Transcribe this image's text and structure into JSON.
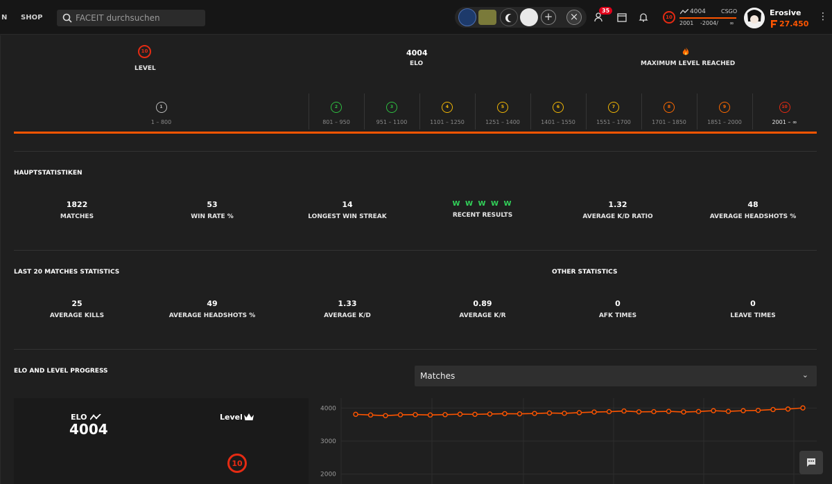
{
  "topbar": {
    "nav_cut": "N",
    "shop": "SHOP",
    "search_placeholder": "FACEIT durchsuchen",
    "notif_count": "35",
    "level": "10",
    "elo_value": "4004",
    "game": "CSGO",
    "elo_min": "2001",
    "elo_range": "-2004/",
    "elo_infinity": "∞",
    "username": "Erosive",
    "points": "27.450"
  },
  "summary": {
    "level_label": "LEVEL",
    "level_value": "10",
    "elo_value": "4004",
    "elo_label": "ELO",
    "max_label": "MAXIMUM LEVEL REACHED"
  },
  "levels": [
    {
      "n": "1",
      "range": "1 – 800",
      "color": "#bdbdbd"
    },
    {
      "n": "2",
      "range": "801 – 950",
      "color": "#2fbf42"
    },
    {
      "n": "3",
      "range": "951 – 1100",
      "color": "#2fbf42"
    },
    {
      "n": "4",
      "range": "1101 – 1250",
      "color": "#f2b705"
    },
    {
      "n": "5",
      "range": "1251 – 1400",
      "color": "#f2b705"
    },
    {
      "n": "6",
      "range": "1401 – 1550",
      "color": "#f2b705"
    },
    {
      "n": "7",
      "range": "1551 – 1700",
      "color": "#f2b705"
    },
    {
      "n": "8",
      "range": "1701 – 1850",
      "color": "#ff6a00"
    },
    {
      "n": "9",
      "range": "1851 – 2000",
      "color": "#ff6a00"
    },
    {
      "n": "10",
      "range": "2001 – ∞",
      "color": "#e52b13"
    }
  ],
  "main_stats": {
    "title": "HAUPTSTATISTIKEN",
    "items": [
      {
        "value": "1822",
        "label": "MATCHES"
      },
      {
        "value": "53",
        "label": "WIN RATE %"
      },
      {
        "value": "14",
        "label": "LONGEST WIN STREAK"
      },
      {
        "value": "W W W W W",
        "label": "RECENT RESULTS"
      },
      {
        "value": "1.32",
        "label": "AVERAGE K/D RATIO"
      },
      {
        "value": "48",
        "label": "AVERAGE HEADSHOTS %"
      }
    ]
  },
  "last20": {
    "title": "LAST 20 MATCHES STATISTICS",
    "other_title": "OTHER STATISTICS",
    "items": [
      {
        "value": "25",
        "label": "AVERAGE KILLS"
      },
      {
        "value": "49",
        "label": "AVERAGE HEADSHOTS %"
      },
      {
        "value": "1.33",
        "label": "AVERAGE K/D"
      },
      {
        "value": "0.89",
        "label": "AVERAGE K/R"
      },
      {
        "value": "0",
        "label": "AFK TIMES"
      },
      {
        "value": "0",
        "label": "LEAVE TIMES"
      }
    ]
  },
  "progress": {
    "title": "ELO AND LEVEL PROGRESS",
    "dropdown_value": "Matches",
    "elo_label": "ELO",
    "level_label": "Level",
    "elo_value": "4004",
    "level_value": "10"
  },
  "colors": {
    "accent": "#ff5500",
    "level10": "#e52b13",
    "win": "#32d35a"
  },
  "chart_data": {
    "type": "line",
    "ytick_labels": [
      "4000",
      "3000",
      "2000"
    ],
    "y_ticks": [
      4000,
      3000,
      2000
    ],
    "ylim": [
      1700,
      4300
    ],
    "series": [
      {
        "values": [
          3810,
          3790,
          3770,
          3795,
          3800,
          3790,
          3800,
          3815,
          3810,
          3820,
          3830,
          3825,
          3835,
          3850,
          3840,
          3860,
          3880,
          3890,
          3910,
          3885,
          3890,
          3900,
          3880,
          3895,
          3920,
          3900,
          3920,
          3930,
          3955,
          3970,
          4004
        ]
      }
    ]
  }
}
